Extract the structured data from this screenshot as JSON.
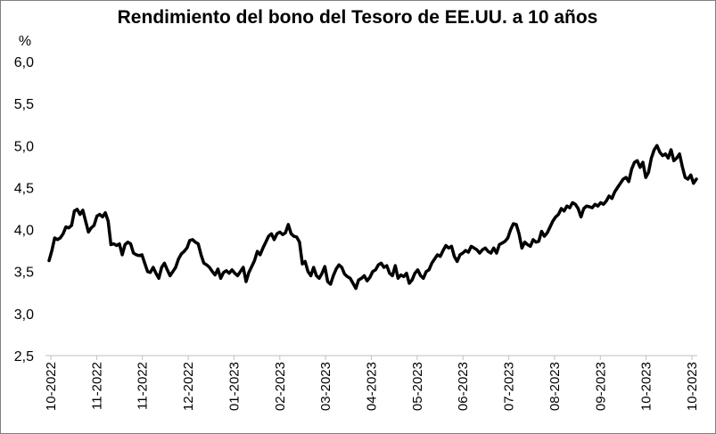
{
  "chart_data": {
    "type": "line",
    "title": "Rendimiento del bono del Tesoro de EE.UU. a 10 años",
    "ylabel": "%",
    "ylim": [
      2.5,
      6.0
    ],
    "y_ticks": [
      "2,5",
      "3,0",
      "3,5",
      "4,0",
      "4,5",
      "5,0",
      "5,5",
      "6,0"
    ],
    "x_ticks": [
      "10-2022",
      "11-2022",
      "11-2022",
      "12-2022",
      "01-2023",
      "02-2023",
      "03-2023",
      "04-2023",
      "05-2023",
      "06-2023",
      "07-2023",
      "08-2023",
      "09-2023",
      "10-2023",
      "10-2023"
    ],
    "line_color": "#000000",
    "series": [
      {
        "values": [
          3.63,
          3.75,
          3.9,
          3.88,
          3.9,
          3.95,
          4.03,
          4.02,
          4.05,
          4.22,
          4.24,
          4.18,
          4.23,
          4.1,
          3.97,
          4.02,
          4.05,
          4.16,
          4.18,
          4.15,
          4.2,
          4.1,
          3.82,
          3.83,
          3.81,
          3.83,
          3.7,
          3.82,
          3.85,
          3.83,
          3.72,
          3.7,
          3.69,
          3.7,
          3.6,
          3.5,
          3.49,
          3.55,
          3.48,
          3.42,
          3.55,
          3.6,
          3.52,
          3.45,
          3.5,
          3.55,
          3.65,
          3.71,
          3.74,
          3.78,
          3.87,
          3.88,
          3.85,
          3.83,
          3.7,
          3.6,
          3.58,
          3.55,
          3.5,
          3.46,
          3.53,
          3.42,
          3.49,
          3.51,
          3.48,
          3.52,
          3.48,
          3.45,
          3.5,
          3.55,
          3.38,
          3.49,
          3.56,
          3.63,
          3.74,
          3.7,
          3.78,
          3.85,
          3.92,
          3.95,
          3.88,
          3.95,
          3.97,
          3.94,
          3.96,
          4.06,
          3.95,
          3.92,
          3.91,
          3.85,
          3.59,
          3.62,
          3.5,
          3.45,
          3.55,
          3.45,
          3.42,
          3.48,
          3.56,
          3.38,
          3.35,
          3.45,
          3.53,
          3.58,
          3.55,
          3.47,
          3.44,
          3.42,
          3.36,
          3.3,
          3.4,
          3.42,
          3.45,
          3.39,
          3.43,
          3.5,
          3.52,
          3.58,
          3.6,
          3.55,
          3.57,
          3.48,
          3.45,
          3.57,
          3.42,
          3.46,
          3.44,
          3.48,
          3.36,
          3.4,
          3.48,
          3.52,
          3.45,
          3.42,
          3.5,
          3.52,
          3.6,
          3.65,
          3.7,
          3.68,
          3.75,
          3.81,
          3.78,
          3.8,
          3.68,
          3.62,
          3.7,
          3.72,
          3.75,
          3.73,
          3.8,
          3.78,
          3.76,
          3.72,
          3.76,
          3.78,
          3.74,
          3.72,
          3.78,
          3.72,
          3.82,
          3.84,
          3.86,
          3.9,
          4.0,
          4.07,
          4.06,
          3.95,
          3.78,
          3.85,
          3.82,
          3.8,
          3.88,
          3.85,
          3.86,
          3.98,
          3.92,
          3.96,
          4.03,
          4.1,
          4.15,
          4.18,
          4.25,
          4.22,
          4.28,
          4.26,
          4.32,
          4.3,
          4.25,
          4.15,
          4.25,
          4.28,
          4.27,
          4.26,
          4.3,
          4.28,
          4.32,
          4.3,
          4.34,
          4.4,
          4.37,
          4.45,
          4.5,
          4.55,
          4.6,
          4.62,
          4.57,
          4.72,
          4.8,
          4.82,
          4.74,
          4.8,
          4.62,
          4.68,
          4.85,
          4.95,
          5.0,
          4.92,
          4.88,
          4.9,
          4.85,
          4.95,
          4.82,
          4.85,
          4.9,
          4.75,
          4.62,
          4.6,
          4.65,
          4.55,
          4.6
        ]
      }
    ]
  }
}
